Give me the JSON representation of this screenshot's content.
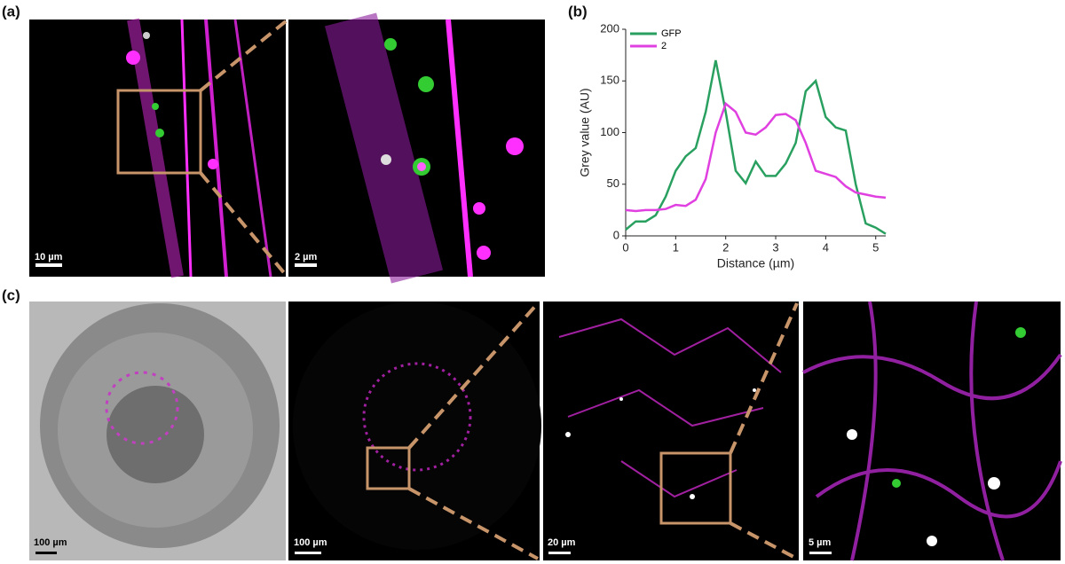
{
  "panels": {
    "a": "(a)",
    "b": "(b)",
    "c": "(c)"
  },
  "scale_bars": [
    "10 µm",
    "2 µm",
    "100 µm",
    "100 µm",
    "20 µm",
    "5 µm"
  ],
  "chart_data": {
    "type": "line",
    "x": [
      0,
      0.2,
      0.4,
      0.6,
      0.8,
      1.0,
      1.2,
      1.4,
      1.6,
      1.8,
      2.0,
      2.2,
      2.4,
      2.6,
      2.8,
      3.0,
      3.2,
      3.4,
      3.6,
      3.8,
      4.0,
      4.2,
      4.4,
      4.6,
      4.8,
      5.0,
      5.2
    ],
    "series": [
      {
        "name": "GFP",
        "color": "#2aa060",
        "values": [
          6,
          14,
          14,
          20,
          38,
          63,
          77,
          85,
          120,
          170,
          120,
          63,
          51,
          72,
          58,
          58,
          70,
          90,
          140,
          150,
          115,
          105,
          102,
          50,
          12,
          8,
          2
        ]
      },
      {
        "name": "2",
        "color": "#e040e0",
        "values": [
          25,
          24,
          25,
          25,
          26,
          30,
          29,
          35,
          55,
          100,
          128,
          120,
          100,
          98,
          105,
          117,
          118,
          112,
          90,
          63,
          60,
          57,
          48,
          42,
          40,
          38,
          37
        ]
      }
    ],
    "xlabel": "Distance (µm)",
    "ylabel": "Grey value (AU)",
    "xlim": [
      0,
      5.2
    ],
    "ylim": [
      0,
      200
    ],
    "xticks": [
      0,
      1,
      2,
      3,
      4,
      5
    ],
    "yticks": [
      0,
      50,
      100,
      150,
      200
    ],
    "legend": "upper left"
  }
}
